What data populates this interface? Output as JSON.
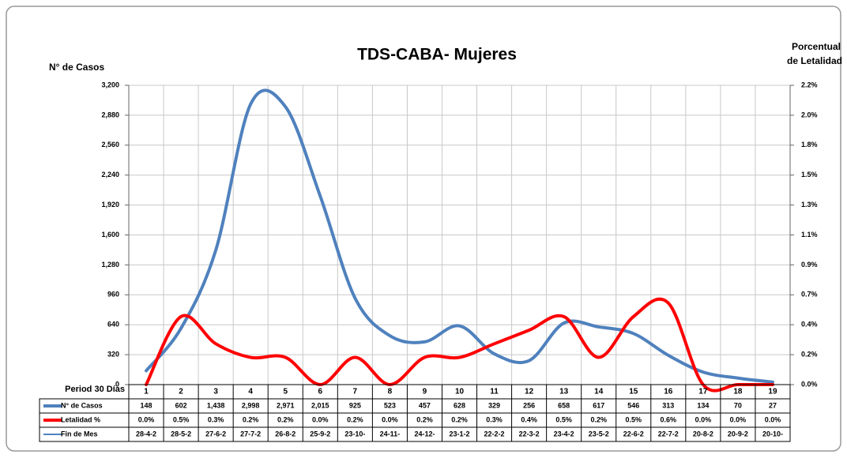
{
  "chart_data": {
    "type": "line",
    "title": "TDS-CABA- Mujeres",
    "y_label": "N° de Casos",
    "y2_label": [
      "Porcentual",
      "de Letalidad"
    ],
    "x_label": "Period 30 Días",
    "categories": [
      "1",
      "2",
      "3",
      "4",
      "5",
      "6",
      "7",
      "8",
      "9",
      "10",
      "11",
      "12",
      "13",
      "14",
      "15",
      "16",
      "17",
      "18",
      "19"
    ],
    "ylim": [
      0,
      3200
    ],
    "yticks": [
      0,
      320,
      640,
      960,
      {
        "value": 1280,
        "label": "1,280"
      },
      {
        "value": 1600,
        "label": "1,600"
      },
      {
        "value": 1920,
        "label": "1,920"
      },
      {
        "value": 2240,
        "label": "2,240"
      },
      {
        "value": 2560,
        "label": "2,560"
      },
      {
        "value": 2880,
        "label": "2,880"
      },
      {
        "value": 3200,
        "label": "3,200"
      }
    ],
    "y2lim": [
      0,
      2.2
    ],
    "y2ticks": [
      {
        "value": 0,
        "label": "0.0%"
      },
      {
        "value": 0.22,
        "label": "0.2%"
      },
      {
        "value": 0.44,
        "label": "0.4%"
      },
      {
        "value": 0.66,
        "label": "0.7%"
      },
      {
        "value": 0.88,
        "label": "0.9%"
      },
      {
        "value": 1.1,
        "label": "1.1%"
      },
      {
        "value": 1.32,
        "label": "1.3%"
      },
      {
        "value": 1.54,
        "label": "1.5%"
      },
      {
        "value": 1.76,
        "label": "1.8%"
      },
      {
        "value": 1.98,
        "label": "2.0%"
      },
      {
        "value": 2.2,
        "label": "2.2%"
      }
    ],
    "grid": true,
    "series": [
      {
        "name": "N° de Casos",
        "color": "#4f81bd",
        "axis": "y",
        "values": [
          148,
          602,
          1438,
          2998,
          2971,
          2015,
          925,
          523,
          457,
          628,
          329,
          256,
          658,
          617,
          546,
          313,
          134,
          70,
          27
        ],
        "value_labels": [
          "148",
          "602",
          "1,438",
          "2,998",
          "2,971",
          "2,015",
          "925",
          "523",
          "457",
          "628",
          "329",
          "256",
          "658",
          "617",
          "546",
          "313",
          "134",
          "70",
          "27"
        ]
      },
      {
        "name": "Letalidad %",
        "color": "#ff0000",
        "axis": "y2",
        "values": [
          0.0,
          0.5,
          0.3,
          0.2,
          0.2,
          0.0,
          0.2,
          0.0,
          0.2,
          0.2,
          0.3,
          0.4,
          0.5,
          0.2,
          0.5,
          0.6,
          0.0,
          0.0,
          0.0
        ],
        "value_labels": [
          "0.0%",
          "0.5%",
          "0.3%",
          "0.2%",
          "0.2%",
          "0.0%",
          "0.2%",
          "0.0%",
          "0.2%",
          "0.2%",
          "0.3%",
          "0.4%",
          "0.5%",
          "0.2%",
          "0.5%",
          "0.6%",
          "0.0%",
          "0.0%",
          "0.0%"
        ]
      }
    ],
    "fin_de_mes": {
      "name": "Fin de Mes",
      "color": "#4f81bd",
      "values": [
        "28-4-2",
        "28-5-2",
        "27-6-2",
        "27-7-2",
        "26-8-2",
        "25-9-2",
        "23-10-",
        "24-11-",
        "24-12-",
        "23-1-2",
        "22-2-2",
        "22-3-2",
        "23-4-2",
        "23-5-2",
        "22-6-2",
        "22-7-2",
        "20-8-2",
        "20-9-2",
        "20-10-"
      ]
    }
  }
}
